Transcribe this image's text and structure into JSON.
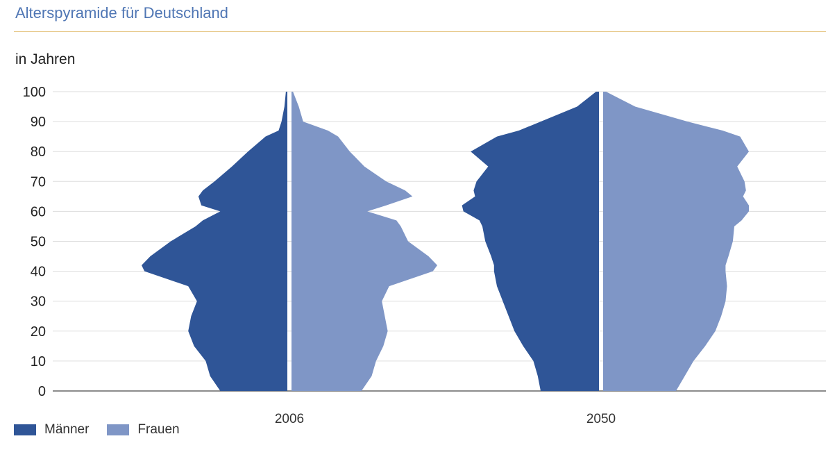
{
  "title": "Alterspyramide für Deutschland",
  "chart_data": {
    "type": "area",
    "title": "Alterspyramide für Deutschland",
    "ylabel": "in Jahren",
    "ylim": [
      0,
      100
    ],
    "y_ticks": [
      "0",
      "10",
      "20",
      "30",
      "40",
      "50",
      "60",
      "70",
      "80",
      "90",
      "100"
    ],
    "ages": [
      0,
      5,
      10,
      15,
      20,
      25,
      30,
      35,
      40,
      42,
      45,
      50,
      55,
      57,
      60,
      62,
      65,
      67,
      70,
      75,
      80,
      85,
      87,
      90,
      95,
      100
    ],
    "pyramids": [
      {
        "year": "2006",
        "men": [
          0.46,
          0.53,
          0.56,
          0.64,
          0.68,
          0.66,
          0.62,
          0.68,
          0.98,
          1.0,
          0.94,
          0.8,
          0.63,
          0.58,
          0.46,
          0.59,
          0.61,
          0.58,
          0.5,
          0.38,
          0.27,
          0.15,
          0.06,
          0.04,
          0.02,
          0.01
        ],
        "women": [
          0.48,
          0.55,
          0.58,
          0.63,
          0.66,
          0.64,
          0.62,
          0.67,
          0.97,
          1.0,
          0.94,
          0.8,
          0.75,
          0.72,
          0.52,
          0.65,
          0.83,
          0.78,
          0.65,
          0.5,
          0.4,
          0.32,
          0.25,
          0.08,
          0.05,
          0.01
        ]
      },
      {
        "year": "2050",
        "men": [
          0.4,
          0.42,
          0.45,
          0.52,
          0.58,
          0.62,
          0.66,
          0.7,
          0.72,
          0.72,
          0.74,
          0.78,
          0.8,
          0.82,
          0.93,
          0.94,
          0.85,
          0.86,
          0.84,
          0.76,
          0.88,
          0.7,
          0.55,
          0.4,
          0.15,
          0.02
        ],
        "women": [
          0.5,
          0.56,
          0.62,
          0.7,
          0.77,
          0.81,
          0.84,
          0.85,
          0.84,
          0.84,
          0.86,
          0.89,
          0.9,
          0.95,
          1.0,
          1.0,
          0.96,
          0.98,
          0.97,
          0.92,
          1.0,
          0.94,
          0.82,
          0.58,
          0.22,
          0.02
        ]
      }
    ],
    "series": [
      {
        "name": "Männer",
        "color": "#2f5597"
      },
      {
        "name": "Frauen",
        "color": "#7f96c6"
      }
    ],
    "legend": "bottom-left",
    "grid": true
  }
}
